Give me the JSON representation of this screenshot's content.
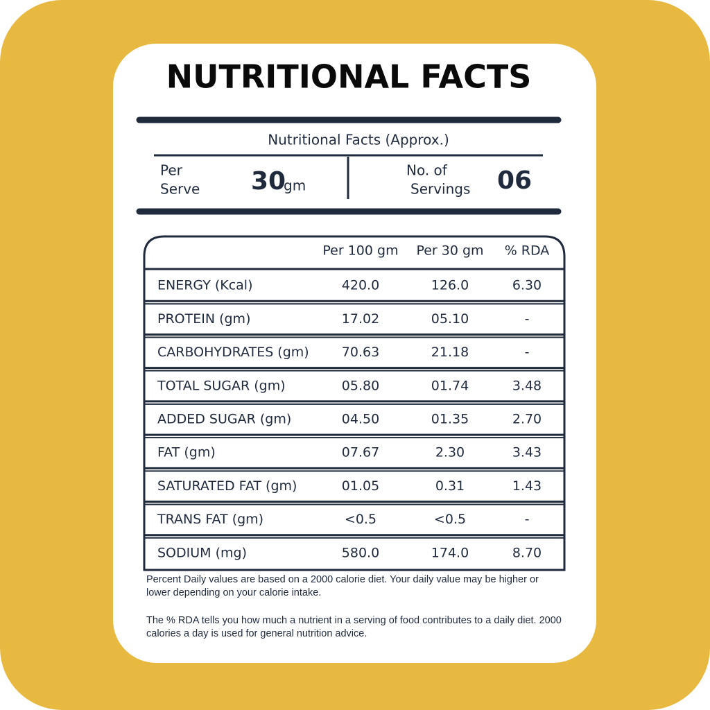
{
  "header": {
    "title": "NUTRITIONAL FACTS",
    "subtitle": "Nutritional Facts (Approx.)"
  },
  "serving": {
    "per_label_1": "Per",
    "per_label_2": "Serve",
    "size": "30",
    "unit": "gm",
    "count_label_1": "No. of",
    "count_label_2": "Servings",
    "count": "06"
  },
  "table": {
    "columns": [
      "Per 100 gm",
      "Per 30 gm",
      "% RDA"
    ],
    "rows": [
      [
        "ENERGY (Kcal)",
        "420.0",
        "126.0",
        "6.30"
      ],
      [
        "PROTEIN (gm)",
        "17.02",
        "05.10",
        "-"
      ],
      [
        "CARBOHYDRATES (gm)",
        "70.63",
        "21.18",
        "-"
      ],
      [
        "TOTAL SUGAR (gm)",
        "05.80",
        "01.74",
        "3.48"
      ],
      [
        "ADDED SUGAR (gm)",
        "04.50",
        "01.35",
        "2.70"
      ],
      [
        "FAT (gm)",
        "07.67",
        "2.30",
        "3.43"
      ],
      [
        "SATURATED FAT (gm)",
        "01.05",
        "0.31",
        "1.43"
      ],
      [
        "TRANS FAT (gm)",
        "<0.5",
        "<0.5",
        "-"
      ],
      [
        "SODIUM (mg)",
        "580.0",
        "174.0",
        "8.70"
      ]
    ]
  },
  "notes": [
    "Percent Daily values are based on a 2000 calorie diet. Your daily value may be higher or lower depending on your calorie intake.",
    "The % RDA tells you how much a nutrient in a serving of food contributes to a daily diet. 2000 calories a day is used for general nutrition advice."
  ]
}
